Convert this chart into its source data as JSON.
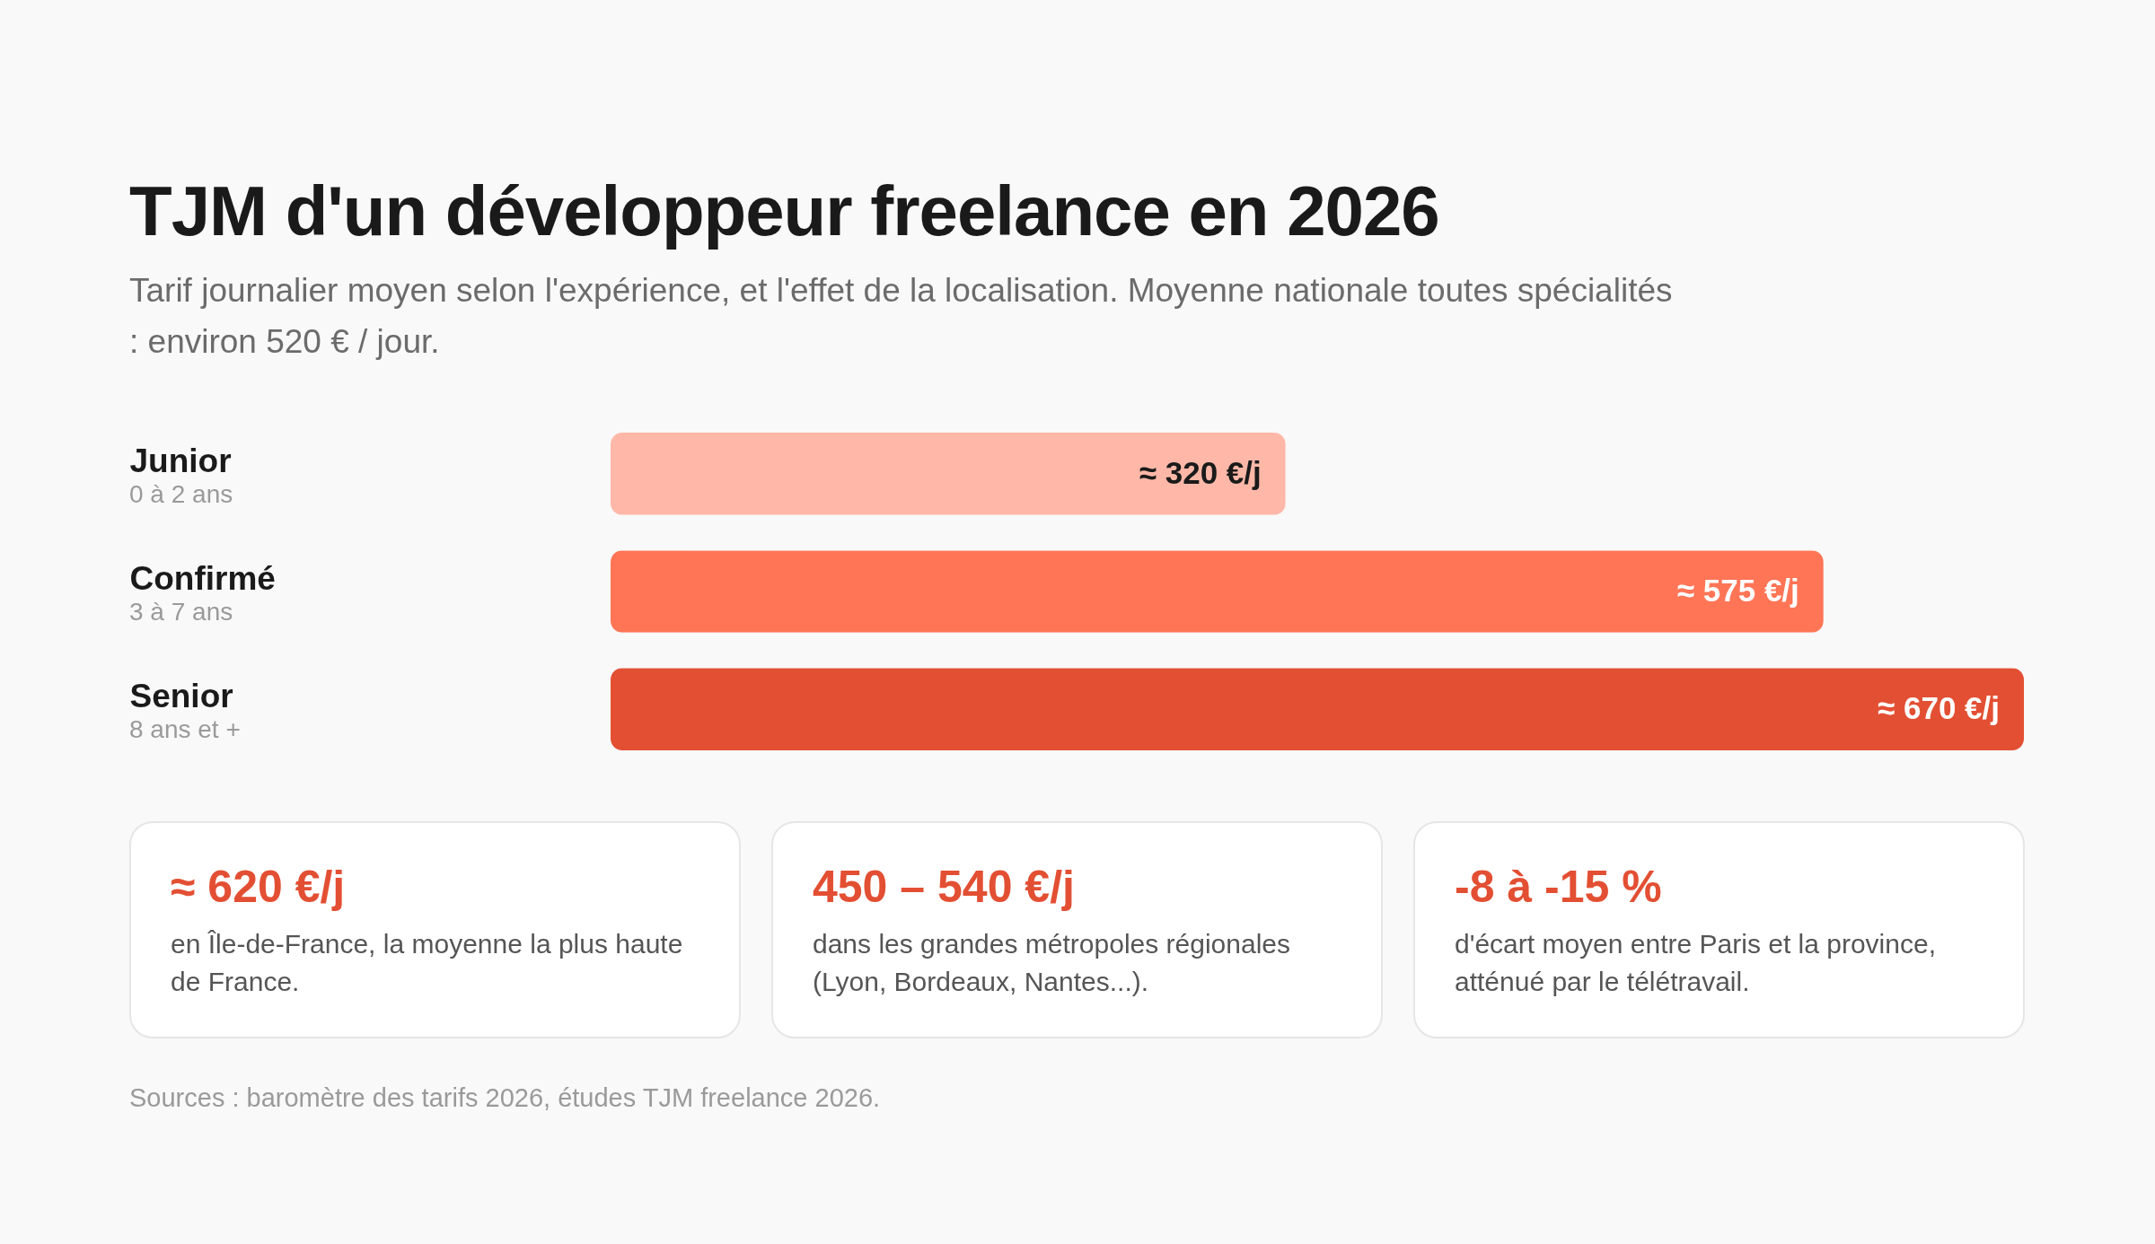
{
  "chart_data": {
    "type": "bar",
    "orientation": "horizontal",
    "title": "TJM d'un développeur freelance en 2026",
    "subtitle": "Tarif journalier moyen selon l'expérience, et l'effet de la localisation. Moyenne nationale toutes spécialités : environ 520 € / jour.",
    "categories": [
      "Junior",
      "Confirmé",
      "Senior"
    ],
    "values": [
      320,
      575,
      670
    ],
    "colors": [
      "#ffb8a8",
      "#ff7556",
      "#e34f33"
    ],
    "value_labels": [
      "≈ 320 €/j",
      "≈ 575 €/j",
      "≈ 670 €/j"
    ],
    "xlim": [
      0,
      670
    ],
    "tick_labels": "y",
    "annotations": [
      "0 à 2 ans",
      "3 à 7 ans",
      "8 ans et +",
      "≈ 620 €/j",
      "en Île-de-France, la moyenne la plus haute de France.",
      "450 – 540 €/j",
      "dans les grandes métropoles régionales (Lyon, Bordeaux, Nantes...).",
      "-8 à -15 %",
      "d'écart moyen entre Paris et la province, atténué par le télétravail.",
      "Sources : baromètre des tarifs 2026, études TJM freelance 2026."
    ]
  }
}
